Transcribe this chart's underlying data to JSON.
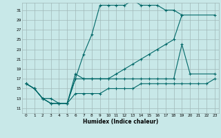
{
  "xlabel": "Humidex (Indice chaleur)",
  "background_color": "#c8e8e8",
  "grid_color": "#a0b8b8",
  "line_color": "#006868",
  "xlim": [
    -0.5,
    23.5
  ],
  "ylim": [
    10.0,
    32.5
  ],
  "x_ticks": [
    0,
    1,
    2,
    3,
    4,
    5,
    6,
    7,
    8,
    9,
    10,
    11,
    12,
    13,
    14,
    15,
    16,
    17,
    18,
    19,
    20,
    21,
    22,
    23
  ],
  "y_ticks": [
    11,
    13,
    15,
    17,
    19,
    21,
    23,
    25,
    27,
    29,
    31
  ],
  "s1_x": [
    0,
    1,
    2,
    3,
    4,
    5,
    6,
    7,
    8,
    9,
    10,
    11,
    12,
    13,
    14,
    15,
    16,
    17,
    18,
    19
  ],
  "s1_y": [
    16,
    15,
    13,
    12,
    12,
    12,
    17,
    22,
    26,
    32,
    32,
    32,
    32,
    33,
    32,
    32,
    32,
    31,
    31,
    30
  ],
  "s2_x": [
    0,
    1,
    2,
    3,
    4,
    5,
    6,
    7,
    8,
    9,
    10,
    11,
    12,
    13,
    14,
    15,
    16,
    17,
    18,
    19,
    23
  ],
  "s2_y": [
    16,
    15,
    13,
    12,
    12,
    12,
    18,
    17,
    17,
    17,
    17,
    18,
    19,
    20,
    21,
    22,
    23,
    24,
    25,
    30,
    30
  ],
  "s3_x": [
    0,
    1,
    2,
    3,
    4,
    5,
    6,
    7,
    8,
    9,
    10,
    11,
    12,
    13,
    14,
    15,
    16,
    17,
    18,
    19,
    20,
    23
  ],
  "s3_y": [
    16,
    15,
    13,
    12,
    12,
    12,
    17,
    17,
    17,
    17,
    17,
    17,
    17,
    17,
    17,
    17,
    17,
    17,
    17,
    24,
    18,
    18
  ],
  "s4_x": [
    0,
    1,
    2,
    3,
    4,
    5,
    6,
    7,
    8,
    9,
    10,
    11,
    12,
    13,
    14,
    15,
    16,
    17,
    18,
    19,
    20,
    21,
    22,
    23
  ],
  "s4_y": [
    16,
    15,
    13,
    13,
    12,
    12,
    14,
    14,
    14,
    14,
    15,
    15,
    15,
    15,
    16,
    16,
    16,
    16,
    16,
    16,
    16,
    16,
    16,
    17
  ]
}
